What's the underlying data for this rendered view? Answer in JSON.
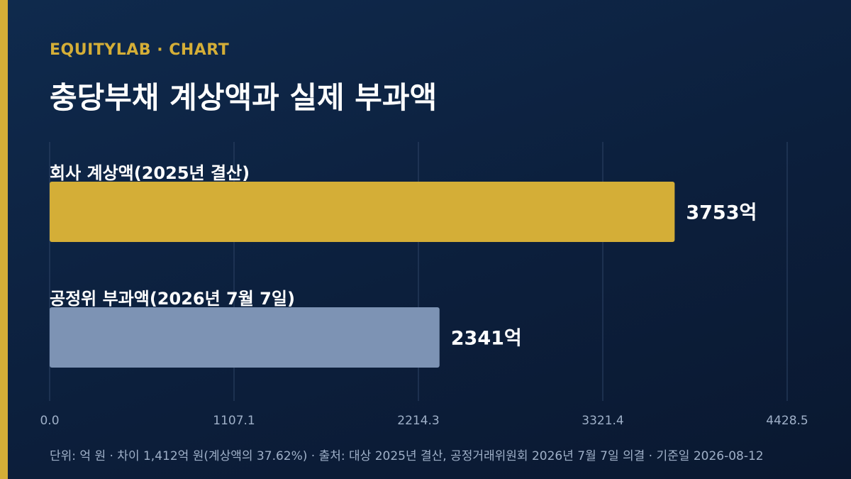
{
  "theme": {
    "accent": "#d4ae37",
    "bar2": "#7d93b4",
    "grid": "#2e4466"
  },
  "header": {
    "brand": "EQUITYLAB · CHART",
    "title": "충당부채 계상액과 실제 부과액"
  },
  "footer": {
    "note": "단위: 억 원 · 차이 1,412억 원(계상액의 37.62%) · 출처: 대상 2025년 결산, 공정거래위원회 2026년 7월 7일 의결 · 기준일 2026-08-12"
  },
  "chart_data": {
    "type": "bar",
    "orientation": "horizontal",
    "categories": [
      "회사 계상액(2025년 결산)",
      "공정위 부과액(2026년 7월 7일)"
    ],
    "values": [
      3753,
      2341
    ],
    "value_labels": [
      "3753억",
      "2341억"
    ],
    "colors": [
      "#d4ae37",
      "#7d93b4"
    ],
    "xlim": [
      0,
      4428.5
    ],
    "xticks": [
      "0.0",
      "1107.1",
      "2214.3",
      "3321.4",
      "4428.5"
    ],
    "grid": true
  }
}
